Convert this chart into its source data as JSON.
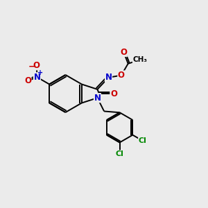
{
  "bg_color": "#ebebeb",
  "bond_color": "#000000",
  "bond_width": 1.4,
  "atom_colors": {
    "N": "#0000cc",
    "O": "#cc0000",
    "Cl": "#008800",
    "C": "#000000"
  },
  "font_size": 8.5,
  "figsize": [
    3.0,
    3.0
  ],
  "dpi": 100
}
